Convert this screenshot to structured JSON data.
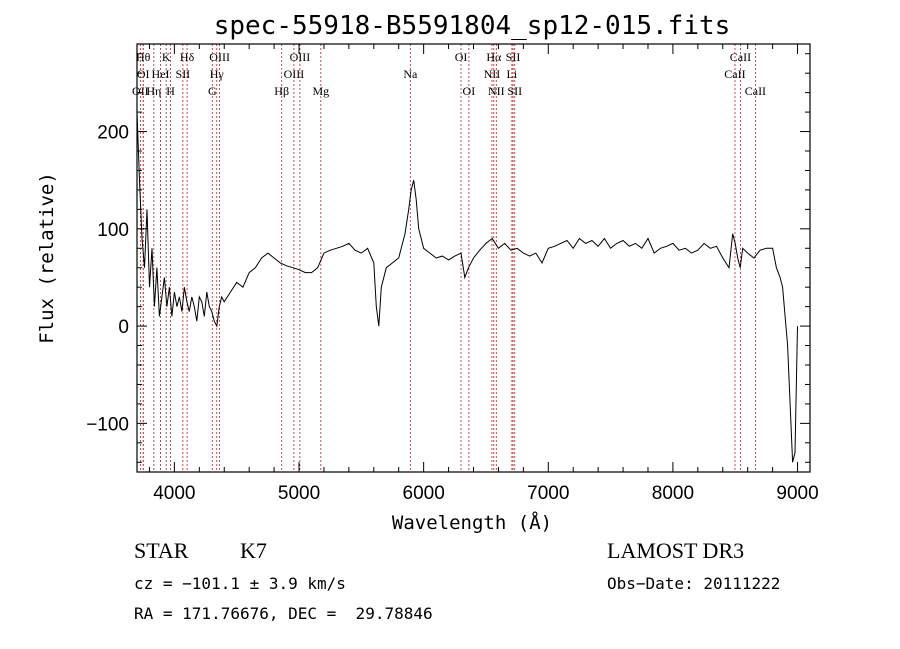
{
  "chart_data": {
    "type": "line",
    "title": "spec-55918-B5591804_sp12-015.fits",
    "xlabel": "Wavelength (Å)",
    "ylabel": "Flux (relative)",
    "xlim": [
      3700,
      9100
    ],
    "ylim": [
      -150,
      290
    ],
    "xticks": [
      4000,
      5000,
      6000,
      7000,
      8000,
      9000
    ],
    "yticks": [
      -100,
      0,
      100,
      200
    ],
    "grid": false,
    "series": [
      {
        "x": [
          3700,
          3720,
          3740,
          3760,
          3780,
          3800,
          3820,
          3840,
          3860,
          3880,
          3900,
          3920,
          3940,
          3960,
          3980,
          4000,
          4020,
          4040,
          4060,
          4080,
          4100,
          4120,
          4140,
          4160,
          4180,
          4200,
          4220,
          4240,
          4260,
          4280,
          4300,
          4320,
          4340,
          4360,
          4380,
          4400,
          4450,
          4500,
          4550,
          4600,
          4650,
          4700,
          4750,
          4800,
          4850,
          4900,
          4950,
          5000,
          5050,
          5100,
          5150,
          5200,
          5250,
          5300,
          5350,
          5400,
          5450,
          5500,
          5550,
          5600,
          5620,
          5640,
          5660,
          5680,
          5700,
          5750,
          5800,
          5850,
          5880,
          5900,
          5920,
          5940,
          5960,
          5980,
          6000,
          6050,
          6100,
          6150,
          6200,
          6250,
          6300,
          6330,
          6360,
          6400,
          6450,
          6500,
          6550,
          6600,
          6650,
          6700,
          6750,
          6800,
          6850,
          6900,
          6950,
          7000,
          7050,
          7100,
          7150,
          7200,
          7250,
          7300,
          7350,
          7400,
          7450,
          7500,
          7550,
          7600,
          7650,
          7700,
          7750,
          7800,
          7850,
          7900,
          7950,
          8000,
          8050,
          8100,
          8150,
          8200,
          8250,
          8300,
          8350,
          8400,
          8450,
          8480,
          8500,
          8520,
          8540,
          8560,
          8600,
          8650,
          8700,
          8750,
          8800,
          8830,
          8860,
          8880,
          8900,
          8920,
          8940,
          8960,
          8980,
          9000
        ],
        "values": [
          220,
          150,
          90,
          60,
          120,
          40,
          80,
          20,
          60,
          10,
          30,
          50,
          20,
          40,
          10,
          35,
          20,
          30,
          15,
          40,
          25,
          15,
          30,
          20,
          5,
          30,
          25,
          10,
          35,
          20,
          15,
          5,
          0,
          20,
          30,
          25,
          35,
          45,
          40,
          55,
          60,
          70,
          75,
          70,
          65,
          62,
          60,
          58,
          55,
          55,
          60,
          75,
          78,
          80,
          82,
          85,
          78,
          75,
          80,
          65,
          20,
          0,
          40,
          50,
          60,
          65,
          70,
          95,
          120,
          140,
          150,
          130,
          100,
          90,
          80,
          75,
          70,
          72,
          68,
          72,
          75,
          50,
          60,
          70,
          78,
          85,
          90,
          80,
          85,
          78,
          80,
          75,
          72,
          75,
          65,
          80,
          82,
          85,
          88,
          80,
          90,
          85,
          88,
          82,
          90,
          80,
          85,
          88,
          82,
          85,
          80,
          90,
          75,
          80,
          82,
          85,
          78,
          80,
          75,
          78,
          85,
          80,
          82,
          70,
          60,
          95,
          85,
          70,
          60,
          80,
          75,
          70,
          78,
          80,
          80,
          60,
          50,
          40,
          10,
          -20,
          -80,
          -140,
          -130,
          0
        ]
      }
    ],
    "lines": [
      {
        "x": 3727,
        "label": "OII",
        "row": 3
      },
      {
        "x": 3750,
        "label": "OI",
        "row": 2
      },
      {
        "x": 3750,
        "label": "Hθ",
        "row": 1
      },
      {
        "x": 3835,
        "label": "Hη",
        "row": 3
      },
      {
        "x": 3889,
        "label": "HeI",
        "row": 2
      },
      {
        "x": 3934,
        "label": "K",
        "row": 1
      },
      {
        "x": 3969,
        "label": "H",
        "row": 3
      },
      {
        "x": 4068,
        "label": "SII",
        "row": 2
      },
      {
        "x": 4102,
        "label": "Hδ",
        "row": 1
      },
      {
        "x": 4304,
        "label": "G",
        "row": 3
      },
      {
        "x": 4340,
        "label": "Hγ",
        "row": 2
      },
      {
        "x": 4363,
        "label": "OIII",
        "row": 1
      },
      {
        "x": 4861,
        "label": "Hβ",
        "row": 3
      },
      {
        "x": 4959,
        "label": "OIII",
        "row": 2
      },
      {
        "x": 5007,
        "label": "OIII",
        "row": 1
      },
      {
        "x": 5175,
        "label": "Mg",
        "row": 3
      },
      {
        "x": 5893,
        "label": "Na",
        "row": 2
      },
      {
        "x": 6300,
        "label": "OI",
        "row": 1
      },
      {
        "x": 6363,
        "label": "OI",
        "row": 3
      },
      {
        "x": 6548,
        "label": "NII",
        "row": 2
      },
      {
        "x": 6563,
        "label": "Hα",
        "row": 1
      },
      {
        "x": 6583,
        "label": "NII",
        "row": 3
      },
      {
        "x": 6708,
        "label": "Li",
        "row": 2
      },
      {
        "x": 6717,
        "label": "SII",
        "row": 1
      },
      {
        "x": 6731,
        "label": "SII",
        "row": 3
      },
      {
        "x": 8498,
        "label": "CaII",
        "row": 2
      },
      {
        "x": 8542,
        "label": "CaII",
        "row": 1
      },
      {
        "x": 8662,
        "label": "CaII",
        "row": 3
      }
    ]
  },
  "info": {
    "class": "STAR",
    "subclass": "K7",
    "survey": "LAMOST DR3",
    "cz": "cz = −101.1 ± 3.9 km/s",
    "obs_date": "Obs−Date: 20111222",
    "coords": "RA = 171.76676, DEC =  29.78846"
  }
}
